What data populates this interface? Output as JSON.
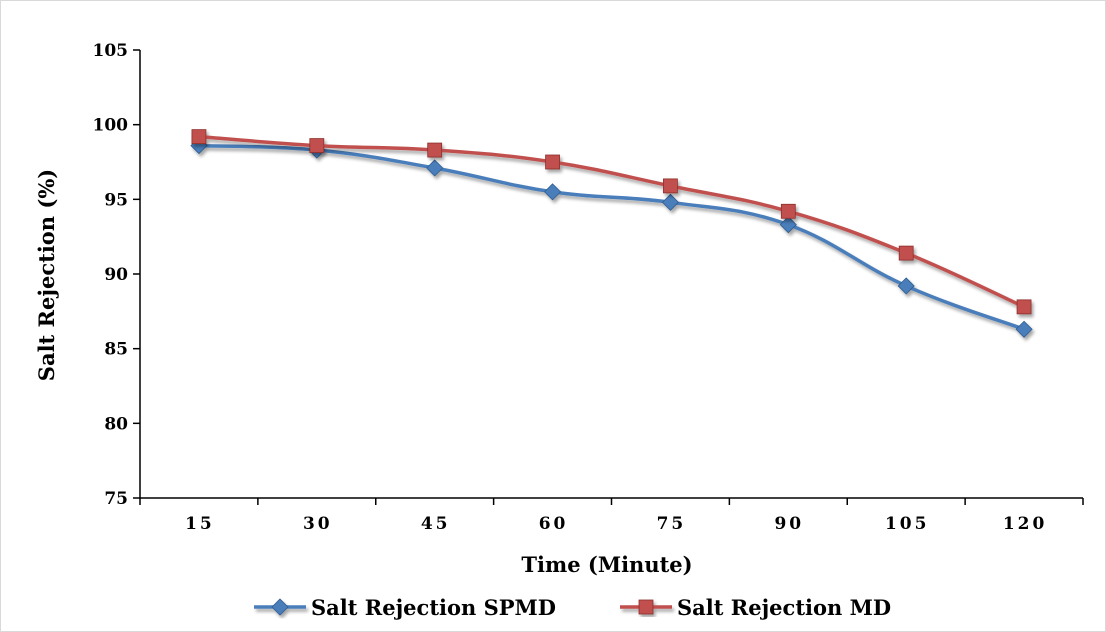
{
  "chart_data": {
    "type": "line",
    "title": "",
    "xlabel": "Time (Minute)",
    "ylabel": "Salt Rejection (%)",
    "categories": [
      "15",
      "30",
      "45",
      "60",
      "75",
      "90",
      "105",
      "120"
    ],
    "ylim": [
      75,
      105
    ],
    "yticks": [
      "75",
      "80",
      "85",
      "90",
      "95",
      "100",
      "105"
    ],
    "grid": false,
    "legend_position": "bottom",
    "series": [
      {
        "name": "Salt Rejection SPMD",
        "color": "#4a7ebb",
        "marker": "diamond",
        "values": [
          98.6,
          98.3,
          97.1,
          95.5,
          94.8,
          93.3,
          89.2,
          86.3
        ]
      },
      {
        "name": "Salt Rejection MD",
        "color": "#c0504d",
        "marker": "square",
        "values": [
          99.2,
          98.6,
          98.3,
          97.5,
          95.9,
          94.2,
          91.4,
          87.8
        ]
      }
    ]
  }
}
